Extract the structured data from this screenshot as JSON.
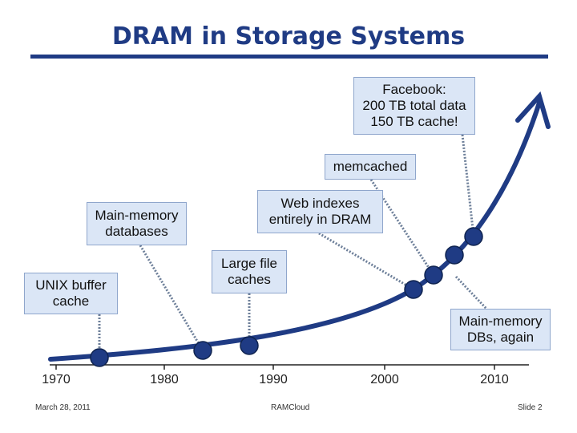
{
  "title": "DRAM in Storage Systems",
  "annotations": {
    "facebook": "Facebook:\n200 TB total data\n150 TB cache!",
    "memcached": "memcached",
    "web_indexes": "Web indexes\nentirely in DRAM",
    "main_memory_databases": "Main-memory\ndatabases",
    "large_file_caches": "Large file\ncaches",
    "unix_buffer_cache": "UNIX buffer\ncache",
    "main_memory_dbs_again": "Main-memory\nDBs, again"
  },
  "axis": {
    "ticks": [
      "1970",
      "1980",
      "1990",
      "2000",
      "2010"
    ]
  },
  "footer": {
    "date": "March 28, 2011",
    "center": "RAMCloud",
    "slide": "Slide 2"
  },
  "colors": {
    "title": "#1f3b84",
    "curve": "#1f3b84",
    "box_fill": "#dbe6f6",
    "box_border": "#8fa6cc",
    "marker": "#1f3b84",
    "connector": "#6d7f99"
  }
}
